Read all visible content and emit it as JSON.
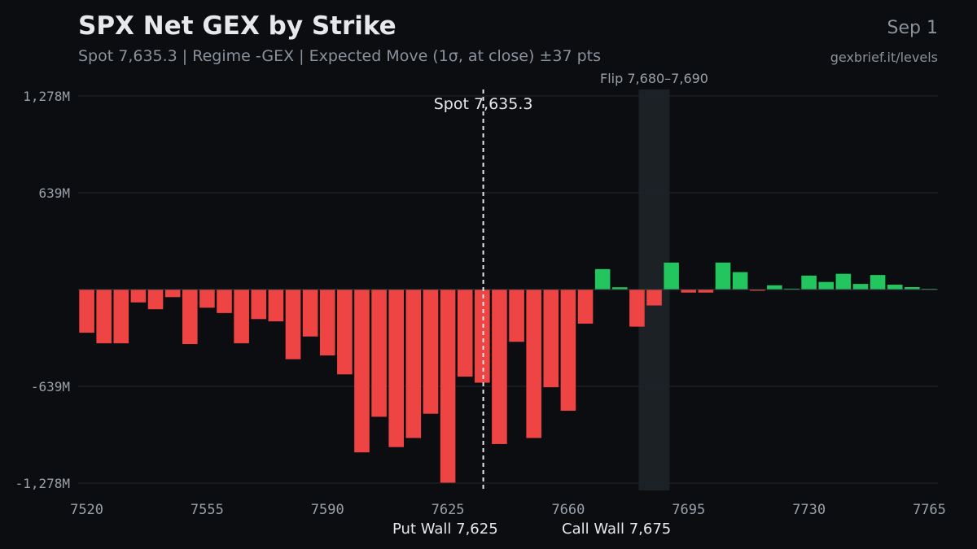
{
  "header": {
    "title": "SPX Net GEX by Strike",
    "subtitle": "Spot 7,635.3 | Regime -GEX | Expected Move (1σ, at close) ±37 pts",
    "date": "Sep 1",
    "source": "gexbrief.it/levels"
  },
  "chart_data": {
    "type": "bar",
    "title": "SPX Net GEX by Strike",
    "xlabel": "",
    "ylabel": "",
    "x": [
      7520,
      7525,
      7530,
      7535,
      7540,
      7545,
      7550,
      7555,
      7560,
      7565,
      7570,
      7575,
      7580,
      7585,
      7590,
      7595,
      7600,
      7605,
      7610,
      7615,
      7620,
      7625,
      7630,
      7635,
      7640,
      7645,
      7650,
      7655,
      7660,
      7665,
      7670,
      7675,
      7680,
      7685,
      7690,
      7695,
      7700,
      7705,
      7710,
      7715,
      7720,
      7725,
      7730,
      7735,
      7740,
      7745,
      7750,
      7755,
      7760,
      7765
    ],
    "values": [
      -285,
      -355,
      -355,
      -85,
      -130,
      -50,
      -360,
      -120,
      -155,
      -355,
      -195,
      -210,
      -460,
      -310,
      -435,
      -560,
      -1075,
      -840,
      -1040,
      -980,
      -820,
      -1275,
      -575,
      -615,
      -1020,
      -345,
      -980,
      -645,
      -800,
      -225,
      135,
      15,
      -245,
      -105,
      178,
      -20,
      -20,
      178,
      115,
      -7,
      28,
      6,
      92,
      50,
      104,
      37,
      96,
      32,
      16,
      5
    ],
    "tick_labels_x": [
      "7520",
      "7555",
      "7590",
      "7625",
      "7660",
      "7695",
      "7730",
      "7765"
    ],
    "tick_values_x": [
      7520,
      7555,
      7590,
      7625,
      7660,
      7695,
      7730,
      7765
    ],
    "tick_labels_y": [
      "1,278M",
      "639M",
      "-639M",
      "-1,278M"
    ],
    "tick_values_y": [
      1278,
      639,
      -639,
      -1278
    ],
    "ylim": [
      -1278,
      1278
    ],
    "xlim": [
      7517.5,
      7767.5
    ],
    "grid": true,
    "positive_color": "#22c55e",
    "negative_color": "#ef4444",
    "spot": {
      "value": 7635.3,
      "label": "Spot 7,635.3"
    },
    "flip_zone": {
      "from": 7680,
      "to": 7690,
      "label": "Flip 7,680–7,690"
    },
    "walls": [
      {
        "label": "Put Wall 7,625",
        "strike": 7625
      },
      {
        "label": "Call Wall 7,675",
        "strike": 7675
      }
    ]
  }
}
